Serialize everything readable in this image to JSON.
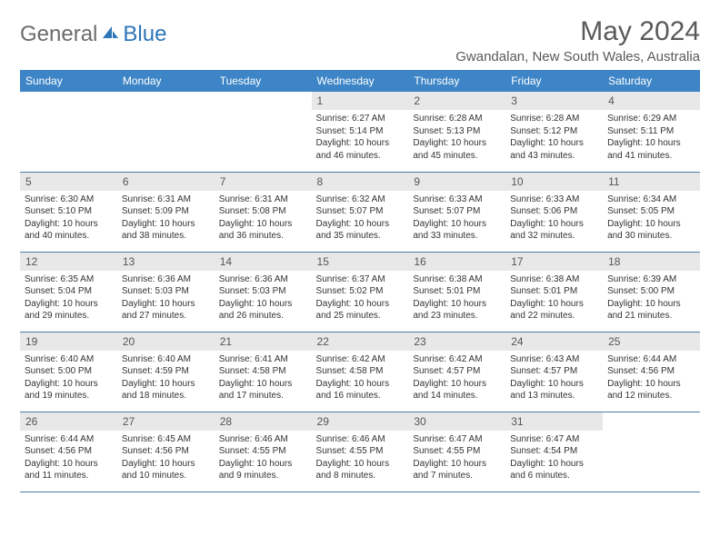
{
  "logo": {
    "part1": "General",
    "part2": "Blue"
  },
  "title": "May 2024",
  "location": "Gwandalan, New South Wales, Australia",
  "colors": {
    "header_bg": "#3d85c6",
    "header_text": "#ffffff",
    "daynum_bg": "#e8e8e8",
    "row_border": "#4a7fa8",
    "logo_gray": "#6b6b6b",
    "logo_blue": "#2d76b9"
  },
  "day_labels": [
    "Sunday",
    "Monday",
    "Tuesday",
    "Wednesday",
    "Thursday",
    "Friday",
    "Saturday"
  ],
  "weeks": [
    [
      null,
      null,
      null,
      {
        "n": "1",
        "sunrise": "6:27 AM",
        "sunset": "5:14 PM",
        "daylight": "10 hours and 46 minutes."
      },
      {
        "n": "2",
        "sunrise": "6:28 AM",
        "sunset": "5:13 PM",
        "daylight": "10 hours and 45 minutes."
      },
      {
        "n": "3",
        "sunrise": "6:28 AM",
        "sunset": "5:12 PM",
        "daylight": "10 hours and 43 minutes."
      },
      {
        "n": "4",
        "sunrise": "6:29 AM",
        "sunset": "5:11 PM",
        "daylight": "10 hours and 41 minutes."
      }
    ],
    [
      {
        "n": "5",
        "sunrise": "6:30 AM",
        "sunset": "5:10 PM",
        "daylight": "10 hours and 40 minutes."
      },
      {
        "n": "6",
        "sunrise": "6:31 AM",
        "sunset": "5:09 PM",
        "daylight": "10 hours and 38 minutes."
      },
      {
        "n": "7",
        "sunrise": "6:31 AM",
        "sunset": "5:08 PM",
        "daylight": "10 hours and 36 minutes."
      },
      {
        "n": "8",
        "sunrise": "6:32 AM",
        "sunset": "5:07 PM",
        "daylight": "10 hours and 35 minutes."
      },
      {
        "n": "9",
        "sunrise": "6:33 AM",
        "sunset": "5:07 PM",
        "daylight": "10 hours and 33 minutes."
      },
      {
        "n": "10",
        "sunrise": "6:33 AM",
        "sunset": "5:06 PM",
        "daylight": "10 hours and 32 minutes."
      },
      {
        "n": "11",
        "sunrise": "6:34 AM",
        "sunset": "5:05 PM",
        "daylight": "10 hours and 30 minutes."
      }
    ],
    [
      {
        "n": "12",
        "sunrise": "6:35 AM",
        "sunset": "5:04 PM",
        "daylight": "10 hours and 29 minutes."
      },
      {
        "n": "13",
        "sunrise": "6:36 AM",
        "sunset": "5:03 PM",
        "daylight": "10 hours and 27 minutes."
      },
      {
        "n": "14",
        "sunrise": "6:36 AM",
        "sunset": "5:03 PM",
        "daylight": "10 hours and 26 minutes."
      },
      {
        "n": "15",
        "sunrise": "6:37 AM",
        "sunset": "5:02 PM",
        "daylight": "10 hours and 25 minutes."
      },
      {
        "n": "16",
        "sunrise": "6:38 AM",
        "sunset": "5:01 PM",
        "daylight": "10 hours and 23 minutes."
      },
      {
        "n": "17",
        "sunrise": "6:38 AM",
        "sunset": "5:01 PM",
        "daylight": "10 hours and 22 minutes."
      },
      {
        "n": "18",
        "sunrise": "6:39 AM",
        "sunset": "5:00 PM",
        "daylight": "10 hours and 21 minutes."
      }
    ],
    [
      {
        "n": "19",
        "sunrise": "6:40 AM",
        "sunset": "5:00 PM",
        "daylight": "10 hours and 19 minutes."
      },
      {
        "n": "20",
        "sunrise": "6:40 AM",
        "sunset": "4:59 PM",
        "daylight": "10 hours and 18 minutes."
      },
      {
        "n": "21",
        "sunrise": "6:41 AM",
        "sunset": "4:58 PM",
        "daylight": "10 hours and 17 minutes."
      },
      {
        "n": "22",
        "sunrise": "6:42 AM",
        "sunset": "4:58 PM",
        "daylight": "10 hours and 16 minutes."
      },
      {
        "n": "23",
        "sunrise": "6:42 AM",
        "sunset": "4:57 PM",
        "daylight": "10 hours and 14 minutes."
      },
      {
        "n": "24",
        "sunrise": "6:43 AM",
        "sunset": "4:57 PM",
        "daylight": "10 hours and 13 minutes."
      },
      {
        "n": "25",
        "sunrise": "6:44 AM",
        "sunset": "4:56 PM",
        "daylight": "10 hours and 12 minutes."
      }
    ],
    [
      {
        "n": "26",
        "sunrise": "6:44 AM",
        "sunset": "4:56 PM",
        "daylight": "10 hours and 11 minutes."
      },
      {
        "n": "27",
        "sunrise": "6:45 AM",
        "sunset": "4:56 PM",
        "daylight": "10 hours and 10 minutes."
      },
      {
        "n": "28",
        "sunrise": "6:46 AM",
        "sunset": "4:55 PM",
        "daylight": "10 hours and 9 minutes."
      },
      {
        "n": "29",
        "sunrise": "6:46 AM",
        "sunset": "4:55 PM",
        "daylight": "10 hours and 8 minutes."
      },
      {
        "n": "30",
        "sunrise": "6:47 AM",
        "sunset": "4:55 PM",
        "daylight": "10 hours and 7 minutes."
      },
      {
        "n": "31",
        "sunrise": "6:47 AM",
        "sunset": "4:54 PM",
        "daylight": "10 hours and 6 minutes."
      },
      null
    ]
  ]
}
